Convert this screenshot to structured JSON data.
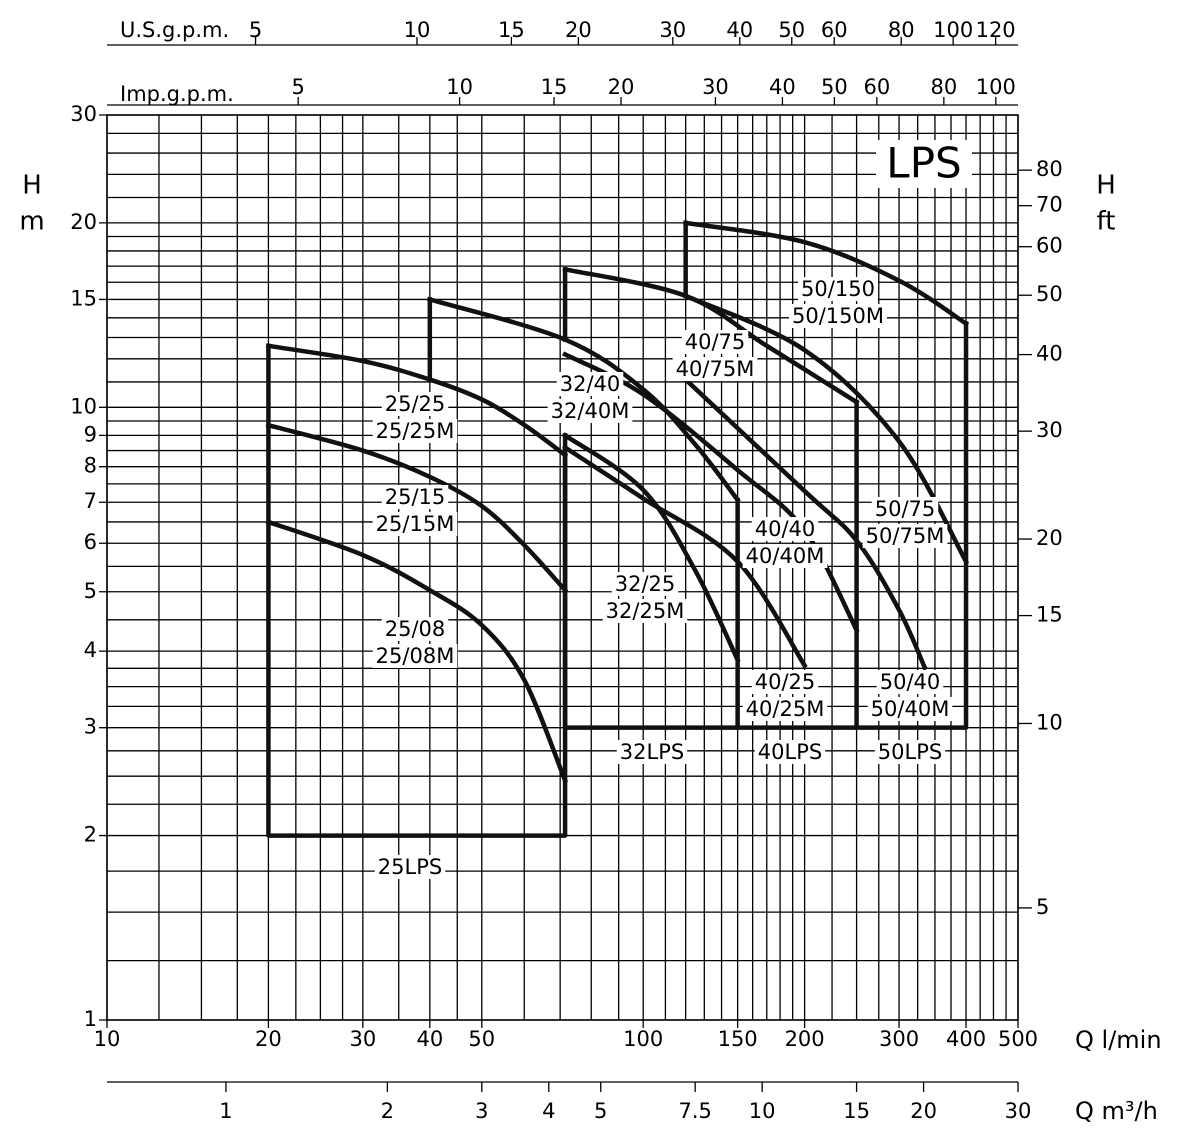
{
  "chart_data": {
    "type": "line",
    "title": "LPS",
    "xlabel": "Q  l/min",
    "ylabel": [
      "H",
      "m"
    ],
    "y2label": [
      "H",
      "ft"
    ],
    "xscale": "log",
    "yscale": "log",
    "xlim": [
      10,
      500
    ],
    "xticks": [
      10,
      20,
      30,
      40,
      50,
      100,
      150,
      200,
      300,
      400,
      500
    ],
    "xgrid": [
      12.5,
      15,
      17.5,
      22.5,
      25,
      27.5,
      35,
      45,
      60,
      70,
      80,
      90,
      110,
      120,
      130,
      140,
      160,
      170,
      180,
      190,
      225,
      250,
      275,
      325,
      350,
      375,
      425,
      450,
      475
    ],
    "ylim": [
      1,
      30
    ],
    "yticks": [
      1,
      2,
      3,
      4,
      5,
      6,
      7,
      8,
      9,
      10,
      15,
      20,
      30
    ],
    "ygrid": [
      1.25,
      1.5,
      1.75,
      2.25,
      2.5,
      2.75,
      3.25,
      3.5,
      3.75,
      4.5,
      5.5,
      6.5,
      7.5,
      8.5,
      9.5,
      11,
      12,
      13,
      14,
      16,
      17,
      18,
      19,
      22,
      24,
      26,
      28
    ],
    "y2lim": [
      3.281,
      98.43
    ],
    "y2ticks": [
      5,
      10,
      15,
      20,
      30,
      40,
      50,
      60,
      70,
      80
    ],
    "top_axes": [
      {
        "label": "U.S.g.p.m.",
        "lim": [
          2.642,
          132.1
        ],
        "ticks": [
          5,
          10,
          15,
          20,
          30,
          40,
          50,
          60,
          80,
          100,
          120
        ]
      },
      {
        "label": "Imp.g.p.m.",
        "lim": [
          2.2,
          110
        ],
        "ticks": [
          5,
          10,
          15,
          20,
          30,
          40,
          50,
          60,
          80,
          100
        ]
      }
    ],
    "bottom_axis": {
      "label": "Q  m³/h",
      "lim": [
        0.6,
        30
      ],
      "ticks": [
        1,
        2,
        3,
        4,
        5,
        7.5,
        10,
        15,
        20,
        30
      ]
    },
    "color": "#111111",
    "series": [
      {
        "labels": [
          "25/08",
          "25/08M"
        ],
        "x": [
          20,
          30,
          40,
          50,
          60,
          71.5
        ],
        "y": [
          6.5,
          5.74,
          5.03,
          4.41,
          3.59,
          2.46
        ]
      },
      {
        "labels": [
          "25/15",
          "25/15M"
        ],
        "x": [
          20,
          30,
          40,
          50,
          60,
          71.5
        ],
        "y": [
          9.35,
          8.5,
          7.7,
          6.9,
          5.96,
          5.03
        ]
      },
      {
        "labels": [
          "25/25",
          "25/25M"
        ],
        "x": [
          20,
          30,
          40,
          50,
          60,
          71.5
        ],
        "y": [
          12.6,
          11.9,
          11.1,
          10.3,
          9.36,
          8.36
        ]
      },
      {
        "labels": [
          "32/25",
          "32/25M"
        ],
        "x": [
          71.5,
          100,
          125,
          150
        ],
        "y": [
          9.0,
          7.33,
          5.42,
          3.87
        ]
      },
      {
        "labels": [
          "32/40",
          "32/40M"
        ],
        "x": [
          40,
          71.5,
          100,
          125,
          150
        ],
        "y": [
          15.0,
          12.9,
          10.7,
          8.7,
          7.06
        ]
      },
      {
        "labels": [
          "40/25",
          "40/25M"
        ],
        "x": [
          71.5,
          100,
          150,
          200
        ],
        "y": [
          8.6,
          7.1,
          5.6,
          3.79
        ]
      },
      {
        "labels": [
          "40/40",
          "40/40M"
        ],
        "x": [
          71.5,
          100,
          150,
          200,
          250
        ],
        "y": [
          12.2,
          10.5,
          7.9,
          6.3,
          4.33
        ]
      },
      {
        "labels": [
          "40/75",
          "40/75M"
        ],
        "x": [
          71.5,
          120,
          170,
          250
        ],
        "y": [
          16.8,
          15.2,
          12.6,
          10.2
        ]
      },
      {
        "labels": [
          "50/40",
          "50/40M"
        ],
        "x": [
          120,
          200,
          250,
          300,
          335
        ],
        "y": [
          11.1,
          7.3,
          6.06,
          4.67,
          3.76
        ]
      },
      {
        "labels": [
          "50/75",
          "50/75M"
        ],
        "x": [
          120,
          200,
          300,
          400
        ],
        "y": [
          15.2,
          12.4,
          8.8,
          5.6
        ]
      },
      {
        "labels": [
          "50/150",
          "50/150M"
        ],
        "x": [
          120,
          200,
          300,
          400
        ],
        "y": [
          20.0,
          18.6,
          16.1,
          13.7
        ]
      },
      {
        "labels": [
          "25LPS"
        ],
        "x": [
          20,
          20,
          71.5,
          71.5
        ],
        "y": [
          12.6,
          2,
          2,
          8.36
        ]
      },
      {
        "labels": [
          "32LPS"
        ],
        "x": [
          40,
          40,
          null,
          71.5,
          71.5,
          150,
          150
        ],
        "y": [
          11.1,
          15,
          null,
          9.0,
          3,
          3,
          7.06
        ]
      },
      {
        "labels": [
          "40LPS"
        ],
        "x": [
          71.5,
          71.5,
          null,
          150,
          250,
          250
        ],
        "y": [
          12.9,
          16.8,
          null,
          3,
          3,
          10.2
        ]
      },
      {
        "labels": [
          "50LPS"
        ],
        "x": [
          120,
          120,
          null,
          250,
          400,
          400
        ],
        "y": [
          15.2,
          20,
          null,
          3,
          3,
          13.7
        ]
      }
    ]
  }
}
